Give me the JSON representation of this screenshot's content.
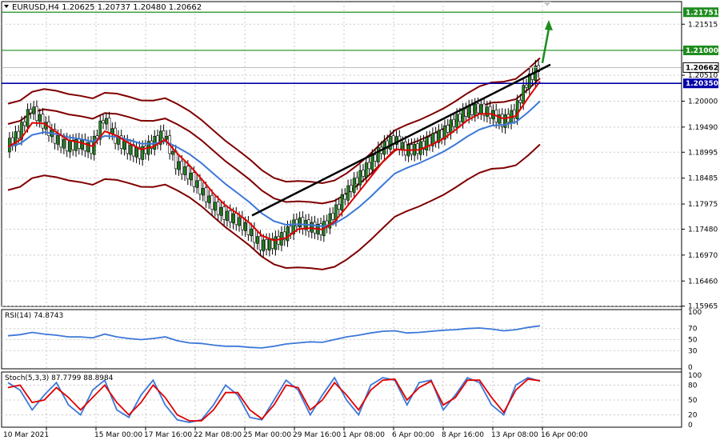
{
  "header": {
    "title": "EURUSD,H4  1.20625 1.20737 1.20480 1.20662"
  },
  "chart_data": [
    {
      "type": "candlestick",
      "symbol": "EURUSD",
      "timeframe": "H4",
      "ohlc": {
        "open": 1.20625,
        "high": 1.20737,
        "low": 1.2048,
        "close": 1.20662
      },
      "ylim": [
        1.1596,
        1.2196
      ],
      "yticks": [
        "1.21515",
        "1.21000",
        "1.20510",
        "1.20000",
        "1.19490",
        "1.18995",
        "1.18485",
        "1.17975",
        "1.17480",
        "1.16970",
        "1.16460",
        "1.15965"
      ],
      "x_labels": [
        "10 Mar 2021",
        "15 Mar 00:00",
        "17 Mar 16:00",
        "22 Mar 08:00",
        "25 Mar 00:00",
        "29 Mar 16:00",
        "1 Apr 08:00",
        "6 Apr 00:00",
        "8 Apr 16:00",
        "13 Apr 08:00",
        "16 Apr 00:00"
      ],
      "levels": [
        {
          "label": "1.21751",
          "value": 1.21751,
          "color": "#1e8c1e"
        },
        {
          "label": "1.21000",
          "value": 1.21,
          "color": "#1e8c1e"
        },
        {
          "label": "1.20350",
          "value": 1.2035,
          "color": "#0000aa"
        }
      ],
      "last_price": {
        "label": "1.20662",
        "value": 1.20662
      },
      "close_path": [
        1.191,
        1.1935,
        1.1985,
        1.1955,
        1.1925,
        1.191,
        1.1915,
        1.1905,
        1.1965,
        1.1925,
        1.1905,
        1.1895,
        1.1915,
        1.1935,
        1.1875,
        1.1855,
        1.1825,
        1.1795,
        1.1775,
        1.1765,
        1.1745,
        1.1715,
        1.1718,
        1.1735,
        1.1762,
        1.1752,
        1.1745,
        1.1775,
        1.1815,
        1.1845,
        1.1875,
        1.1905,
        1.1925,
        1.1902,
        1.1905,
        1.1922,
        1.1935,
        1.1958,
        1.1978,
        1.1985,
        1.1975,
        1.1958,
        1.1975,
        1.2035,
        1.2066
      ],
      "trendline": {
        "from": 1.1775,
        "to": 1.2072
      },
      "arrow_target": 1.2155,
      "colors": {
        "candle_up": "#1e8c1e",
        "ma_fast": "#e00000",
        "ma_slow": "#3c78d8",
        "bands": "#800000",
        "trendline": "#000000",
        "arrow": "#1e8c1e",
        "axis_bg": "#ffffff"
      }
    },
    {
      "type": "line",
      "name": "RSI(14) 74.8743",
      "ylim": [
        0,
        100
      ],
      "yticks": [
        "100",
        "70",
        "50",
        "30",
        "0"
      ],
      "levels": [
        70,
        50,
        30
      ],
      "values": [
        57,
        59,
        63,
        60,
        58,
        55,
        55,
        53,
        60,
        55,
        52,
        50,
        52,
        55,
        48,
        44,
        43,
        40,
        38,
        38,
        36,
        35,
        38,
        42,
        44,
        46,
        45,
        50,
        55,
        58,
        62,
        65,
        66,
        62,
        63,
        65,
        67,
        68,
        70,
        71,
        69,
        66,
        68,
        72,
        75
      ],
      "color": "#3c78d8"
    },
    {
      "type": "line",
      "name": "Stoch(5,3,3) 87.7799 88.8984",
      "ylim": [
        0,
        100
      ],
      "yticks": [
        "100",
        "80",
        "50",
        "20",
        "0"
      ],
      "levels": [
        80,
        50,
        20
      ],
      "main": [
        85,
        70,
        30,
        60,
        85,
        40,
        20,
        70,
        90,
        30,
        15,
        60,
        90,
        40,
        10,
        5,
        10,
        40,
        80,
        60,
        15,
        10,
        50,
        90,
        70,
        20,
        60,
        95,
        50,
        20,
        80,
        95,
        90,
        40,
        85,
        90,
        30,
        60,
        95,
        85,
        40,
        20,
        80,
        95,
        88
      ],
      "signal": [
        75,
        80,
        45,
        50,
        75,
        55,
        30,
        55,
        80,
        45,
        20,
        45,
        80,
        55,
        20,
        8,
        8,
        30,
        65,
        65,
        30,
        12,
        40,
        80,
        75,
        30,
        50,
        85,
        60,
        30,
        70,
        90,
        92,
        50,
        75,
        88,
        40,
        55,
        90,
        90,
        55,
        25,
        70,
        92,
        89
      ],
      "colors": {
        "main": "#3c78d8",
        "signal": "#e00000"
      }
    }
  ]
}
